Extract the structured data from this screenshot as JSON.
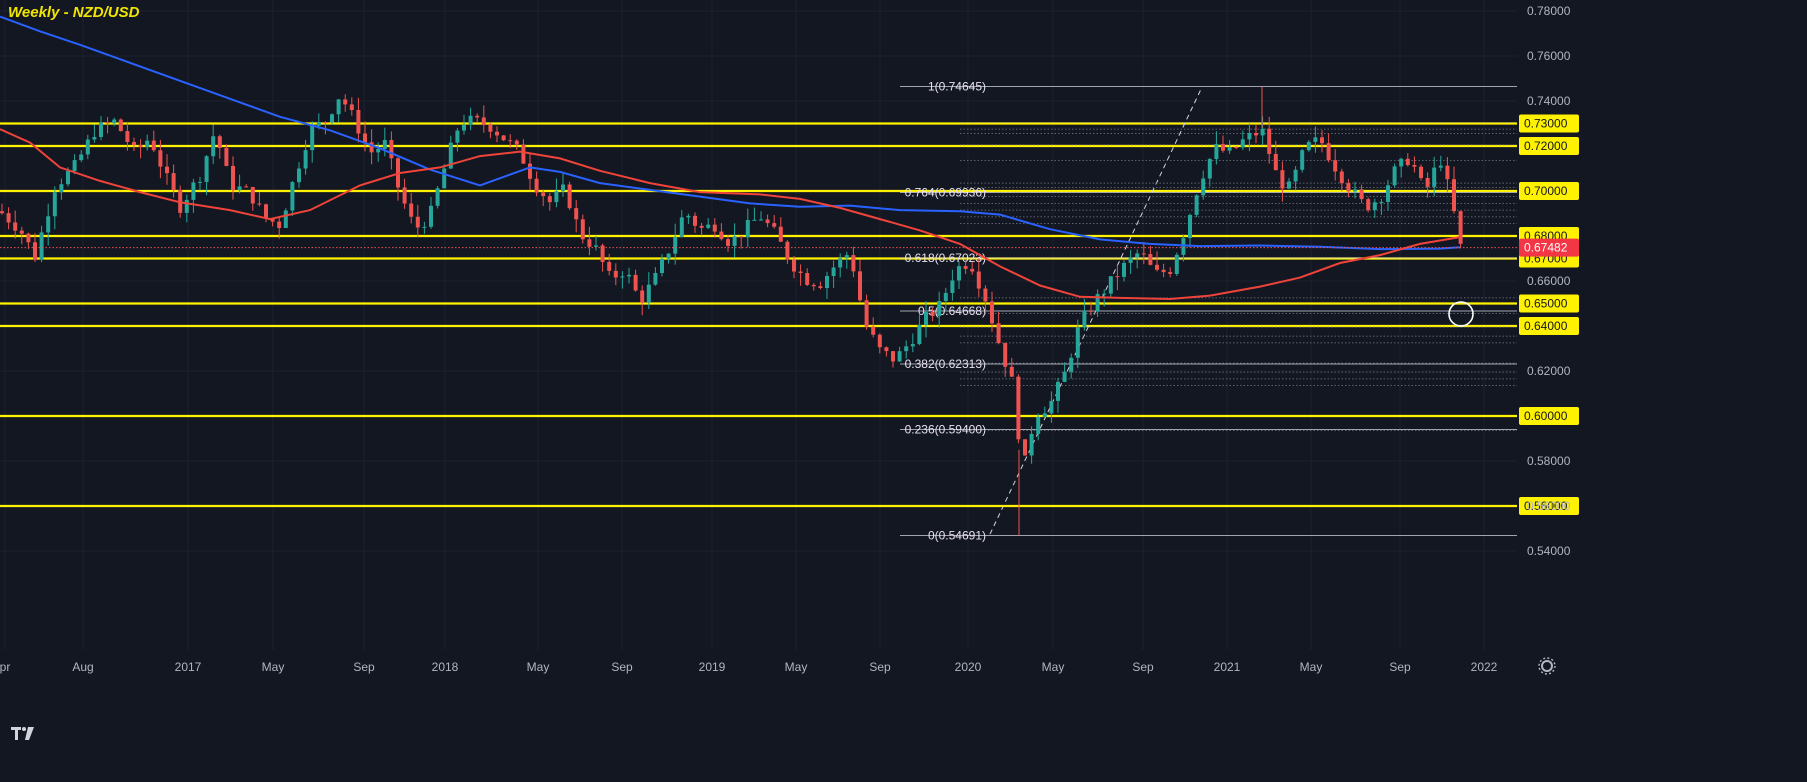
{
  "title": "Weekly - NZD/USD",
  "colors": {
    "background": "#131722",
    "grid": "#1e222d",
    "up": "#26a69a",
    "down": "#ef5350",
    "ma_slow": "#2962ff",
    "ma_fast": "#f0443a",
    "level": "#fff200",
    "fib": "#d1d4dc",
    "axis_text": "#b2b5be"
  },
  "chart_data": {
    "type": "candlestick",
    "title": "Weekly - NZD/USD",
    "ylim": [
      0.53,
      0.78
    ],
    "y_ticks": [
      "0.54000",
      "0.56000",
      "0.58000",
      "0.62000",
      "0.66000",
      "0.74000",
      "0.76000",
      "0.78000"
    ],
    "x_ticks": [
      "pr",
      "Aug",
      "2017",
      "May",
      "Sep",
      "2018",
      "May",
      "Sep",
      "2019",
      "May",
      "Sep",
      "2020",
      "May",
      "Sep",
      "2021",
      "May",
      "Sep",
      "2022"
    ],
    "horizontal_levels": [
      "0.73000",
      "0.72000",
      "0.70000",
      "0.68000",
      "0.67000",
      "0.65000",
      "0.64000",
      "0.60000",
      "0.56000"
    ],
    "current_price": "0.67482",
    "fibonacci": [
      {
        "label": "1(0.74645)",
        "value": 0.74645
      },
      {
        "label": "0.764(0.69936)",
        "value": 0.69936
      },
      {
        "label": "0.618(0.67023)",
        "value": 0.67023
      },
      {
        "label": "0.5(0.64668)",
        "value": 0.64668
      },
      {
        "label": "0.382(0.62313)",
        "value": 0.62313
      },
      {
        "label": "0.236(0.59400)",
        "value": 0.594
      },
      {
        "label": "0(0.54691)",
        "value": 0.54691
      }
    ],
    "series": [
      {
        "name": "",
        "type": "moving_average",
        "color": "#2962ff",
        "points": [
          [
            0,
            0.7775
          ],
          [
            40,
            0.771
          ],
          [
            80,
            0.765
          ],
          [
            130,
            0.757
          ],
          [
            180,
            0.749
          ],
          [
            230,
            0.741
          ],
          [
            280,
            0.733
          ],
          [
            330,
            0.727
          ],
          [
            380,
            0.719
          ],
          [
            430,
            0.7095
          ],
          [
            480,
            0.7025
          ],
          [
            530,
            0.7105
          ],
          [
            560,
            0.7085
          ],
          [
            600,
            0.7035
          ],
          [
            650,
            0.7005
          ],
          [
            700,
            0.6975
          ],
          [
            750,
            0.6945
          ],
          [
            800,
            0.693
          ],
          [
            850,
            0.6935
          ],
          [
            900,
            0.6915
          ],
          [
            960,
            0.691
          ],
          [
            1000,
            0.6895
          ],
          [
            1050,
            0.683
          ],
          [
            1100,
            0.6785
          ],
          [
            1150,
            0.6765
          ],
          [
            1200,
            0.6755
          ],
          [
            1260,
            0.6758
          ],
          [
            1320,
            0.6752
          ],
          [
            1380,
            0.6742
          ],
          [
            1440,
            0.6744
          ],
          [
            1460,
            0.675
          ]
        ]
      },
      {
        "name": "",
        "type": "moving_average",
        "color": "#f0443a",
        "points": [
          [
            0,
            0.7275
          ],
          [
            30,
            0.7215
          ],
          [
            60,
            0.7105
          ],
          [
            100,
            0.7045
          ],
          [
            140,
            0.6995
          ],
          [
            180,
            0.695
          ],
          [
            230,
            0.6915
          ],
          [
            270,
            0.6875
          ],
          [
            310,
            0.6915
          ],
          [
            360,
            0.7025
          ],
          [
            400,
            0.708
          ],
          [
            440,
            0.7105
          ],
          [
            480,
            0.7155
          ],
          [
            520,
            0.7175
          ],
          [
            560,
            0.7145
          ],
          [
            600,
            0.709
          ],
          [
            650,
            0.7035
          ],
          [
            700,
            0.6995
          ],
          [
            760,
            0.6985
          ],
          [
            800,
            0.6965
          ],
          [
            840,
            0.6925
          ],
          [
            880,
            0.6875
          ],
          [
            920,
            0.6825
          ],
          [
            960,
            0.6765
          ],
          [
            1000,
            0.6665
          ],
          [
            1040,
            0.658
          ],
          [
            1080,
            0.653
          ],
          [
            1120,
            0.6525
          ],
          [
            1170,
            0.652
          ],
          [
            1210,
            0.6535
          ],
          [
            1260,
            0.6575
          ],
          [
            1300,
            0.6615
          ],
          [
            1340,
            0.668
          ],
          [
            1380,
            0.6715
          ],
          [
            1420,
            0.6765
          ],
          [
            1460,
            0.6795
          ]
        ]
      },
      {
        "name": "",
        "type": "price_path",
        "points": [
          [
            0,
            0.691
          ],
          [
            20,
            0.683
          ],
          [
            35,
            0.671
          ],
          [
            55,
            0.702
          ],
          [
            75,
            0.711
          ],
          [
            95,
            0.727
          ],
          [
            115,
            0.731
          ],
          [
            135,
            0.717
          ],
          [
            150,
            0.724
          ],
          [
            165,
            0.707
          ],
          [
            180,
            0.693
          ],
          [
            200,
            0.707
          ],
          [
            215,
            0.727
          ],
          [
            230,
            0.703
          ],
          [
            250,
            0.699
          ],
          [
            265,
            0.688
          ],
          [
            280,
            0.685
          ],
          [
            295,
            0.707
          ],
          [
            310,
            0.727
          ],
          [
            325,
            0.731
          ],
          [
            340,
            0.743
          ],
          [
            355,
            0.731
          ],
          [
            370,
            0.717
          ],
          [
            385,
            0.721
          ],
          [
            400,
            0.699
          ],
          [
            415,
            0.683
          ],
          [
            430,
            0.689
          ],
          [
            445,
            0.711
          ],
          [
            460,
            0.731
          ],
          [
            475,
            0.731
          ],
          [
            490,
            0.729
          ],
          [
            505,
            0.723
          ],
          [
            520,
            0.717
          ],
          [
            535,
            0.703
          ],
          [
            550,
            0.695
          ],
          [
            565,
            0.701
          ],
          [
            580,
            0.681
          ],
          [
            595,
            0.675
          ],
          [
            610,
            0.661
          ],
          [
            625,
            0.665
          ],
          [
            640,
            0.651
          ],
          [
            655,
            0.661
          ],
          [
            670,
            0.675
          ],
          [
            685,
            0.691
          ],
          [
            700,
            0.683
          ],
          [
            715,
            0.685
          ],
          [
            730,
            0.677
          ],
          [
            745,
            0.683
          ],
          [
            760,
            0.689
          ],
          [
            775,
            0.681
          ],
          [
            790,
            0.669
          ],
          [
            805,
            0.661
          ],
          [
            820,
            0.659
          ],
          [
            835,
            0.667
          ],
          [
            850,
            0.673
          ],
          [
            865,
            0.641
          ],
          [
            880,
            0.629
          ],
          [
            895,
            0.625
          ],
          [
            910,
            0.633
          ],
          [
            925,
            0.643
          ],
          [
            940,
            0.649
          ],
          [
            955,
            0.665
          ],
          [
            970,
            0.669
          ],
          [
            985,
            0.653
          ],
          [
            1000,
            0.631
          ],
          [
            1015,
            0.611
          ],
          [
            1022,
            0.573
          ],
          [
            1035,
            0.601
          ],
          [
            1050,
            0.605
          ],
          [
            1065,
            0.619
          ],
          [
            1080,
            0.641
          ],
          [
            1095,
            0.651
          ],
          [
            1110,
            0.659
          ],
          [
            1125,
            0.667
          ],
          [
            1140,
            0.673
          ],
          [
            1155,
            0.663
          ],
          [
            1170,
            0.665
          ],
          [
            1185,
            0.683
          ],
          [
            1200,
            0.705
          ],
          [
            1215,
            0.719
          ],
          [
            1230,
            0.717
          ],
          [
            1245,
            0.723
          ],
          [
            1262,
            0.727
          ],
          [
            1278,
            0.705
          ],
          [
            1290,
            0.701
          ],
          [
            1305,
            0.719
          ],
          [
            1320,
            0.723
          ],
          [
            1335,
            0.711
          ],
          [
            1350,
            0.701
          ],
          [
            1365,
            0.693
          ],
          [
            1380,
            0.697
          ],
          [
            1395,
            0.709
          ],
          [
            1410,
            0.715
          ],
          [
            1425,
            0.699
          ],
          [
            1440,
            0.715
          ],
          [
            1452,
            0.695
          ],
          [
            1460,
            0.675
          ]
        ]
      }
    ]
  }
}
